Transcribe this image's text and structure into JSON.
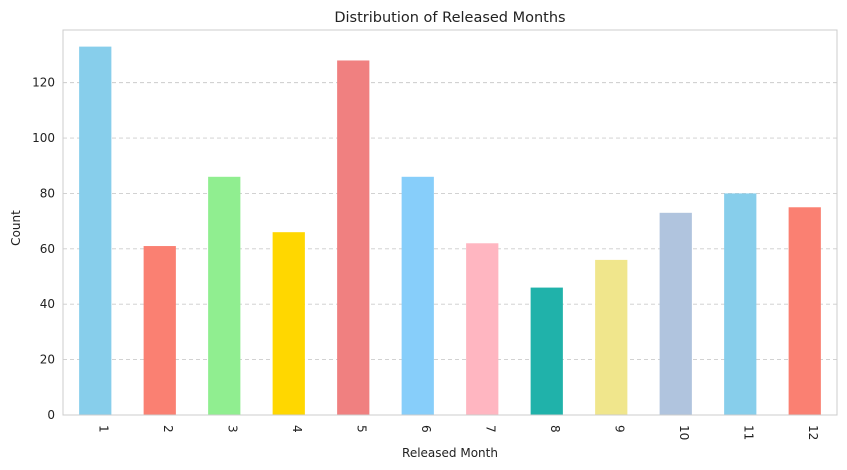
{
  "chart_data": {
    "type": "bar",
    "title": "Distribution of Released Months",
    "xlabel": "Released Month",
    "ylabel": "Count",
    "categories": [
      "1",
      "2",
      "3",
      "4",
      "5",
      "6",
      "7",
      "8",
      "9",
      "10",
      "11",
      "12"
    ],
    "values": [
      133,
      61,
      86,
      66,
      128,
      86,
      62,
      46,
      56,
      73,
      80,
      75
    ],
    "ylim": [
      0,
      139
    ],
    "yticks": [
      0,
      20,
      40,
      60,
      80,
      100,
      120
    ],
    "grid": "y-dashed",
    "colors": [
      "#87ceeb",
      "#fa8072",
      "#90ee90",
      "#ffd700",
      "#f08080",
      "#87cefa",
      "#ffb6c1",
      "#20b2aa",
      "#f0e68c",
      "#b0c4de",
      "#87ceeb",
      "#fa8072"
    ],
    "axis_color": "#cccccc",
    "grid_color": "#cccccc"
  }
}
